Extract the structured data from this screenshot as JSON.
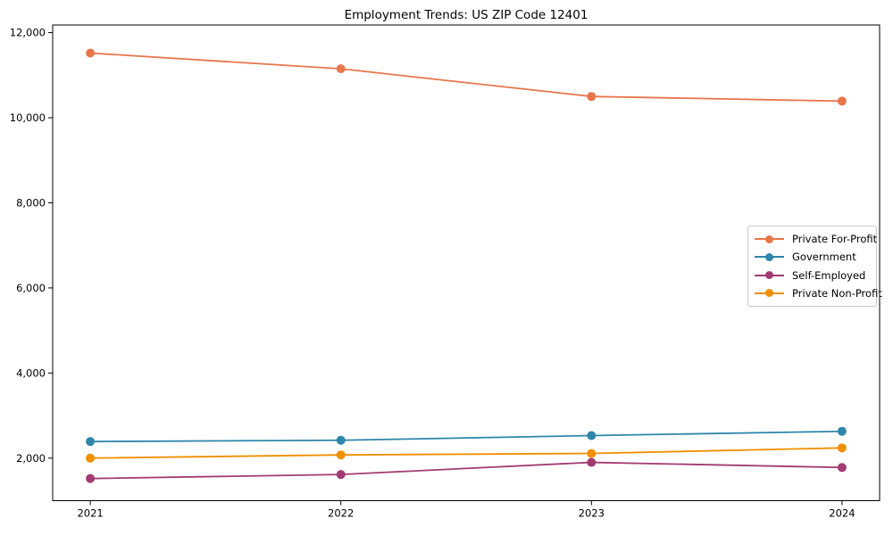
{
  "page": {
    "background_color": "#ffffff",
    "text_color": "#000000",
    "axis_color": "#000000",
    "legend_border_color": "#c9c9c9"
  },
  "chart_data": {
    "type": "line",
    "title": "Employment Trends: US ZIP Code 12401",
    "xlabel": "",
    "ylabel": "",
    "x": [
      2021,
      2022,
      2023,
      2024
    ],
    "x_tick_labels": [
      "2021",
      "2022",
      "2023",
      "2024"
    ],
    "xlim": [
      2020.85,
      2024.15
    ],
    "ylim": [
      1000,
      12180
    ],
    "yticks": [
      2000,
      4000,
      6000,
      8000,
      10000,
      12000
    ],
    "ytick_labels": [
      "2,000",
      "4,000",
      "6,000",
      "8,000",
      "10,000",
      "12,000"
    ],
    "grid": false,
    "legend_position": "middle-right",
    "marker": "circle",
    "series": [
      {
        "name": "Private For-Profit",
        "color": "#E8764A",
        "values": [
          11520,
          11150,
          10500,
          10390
        ]
      },
      {
        "name": "Government",
        "color": "#2E86AB",
        "values": [
          2390,
          2420,
          2530,
          2630
        ]
      },
      {
        "name": "Self-Employed",
        "color": "#A23B72",
        "values": [
          1520,
          1615,
          1900,
          1780
        ]
      },
      {
        "name": "Private Non-Profit",
        "color": "#F18F01",
        "values": [
          2000,
          2075,
          2110,
          2240
        ]
      }
    ]
  }
}
